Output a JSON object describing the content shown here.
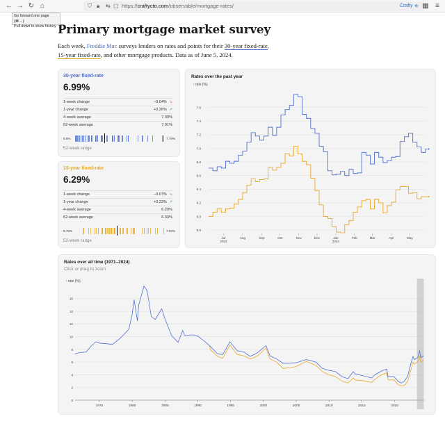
{
  "browser": {
    "url_prefix": "https://",
    "url_host": "craftycto.com",
    "url_path": "/observable/mortgage-rates/",
    "tooltip_line1": "Go forward one page (⌘→)",
    "tooltip_line2": "Pull down to show history",
    "extension_label": "Crafty",
    "icons": [
      "back-icon",
      "forward-icon",
      "reload-icon",
      "home-icon",
      "shield-icon",
      "lock-icon",
      "tracking-icon",
      "bookmark-icon",
      "extensions-icon",
      "menu-icon"
    ]
  },
  "page": {
    "title": "Primary mortgage market survey",
    "intro_1": "Each week, ",
    "intro_link": "Freddie Mac",
    "intro_2": " surveys lenders on rates and points for their ",
    "intro_30": "30-year fixed-rate",
    "intro_3": ", ",
    "intro_15": "15-year fixed-rate",
    "intro_4": ", and other mortgage products. Data as of June 5, 2024."
  },
  "colors": {
    "rate30": "#4f6fd0",
    "rate15": "#e9a829",
    "down": "#d9534f",
    "up": "#2e9b51"
  },
  "card30": {
    "title": "30-year fixed-rate",
    "rate": "6.99%",
    "rows": [
      {
        "label": "1-week change",
        "value": "−0.04%",
        "arrow": "↘",
        "dir": "down"
      },
      {
        "label": "1-year change",
        "value": "+0.26%",
        "arrow": "↗",
        "dir": "up"
      },
      {
        "label": "4-week average",
        "value": "7.00%",
        "arrow": "",
        "dir": ""
      },
      {
        "label": "52-week average",
        "value": "7.01%",
        "arrow": "",
        "dir": ""
      }
    ],
    "range_min": "6.6%",
    "range_max": "7.79%",
    "range_caption": "52-week range",
    "range": [
      6.6,
      7.79
    ],
    "current": 6.99
  },
  "card15": {
    "title": "15-year fixed-rate",
    "rate": "6.29%",
    "rows": [
      {
        "label": "1-week change",
        "value": "−0.07%",
        "arrow": "↘",
        "dir": "down"
      },
      {
        "label": "1-year change",
        "value": "+0.22%",
        "arrow": "↗",
        "dir": "up"
      },
      {
        "label": "4-week average",
        "value": "6.29%",
        "arrow": "",
        "dir": ""
      },
      {
        "label": "52-week average",
        "value": "6.33%",
        "arrow": "",
        "dir": ""
      }
    ],
    "range_min": "5.76%",
    "range_max": "7.03%",
    "range_caption": "52-week range",
    "range": [
      5.76,
      7.03
    ],
    "current": 6.29
  },
  "chart_data": [
    {
      "type": "line",
      "title": "Rates over the past year",
      "ylabel": "↑ rate (%)",
      "ylim": [
        5.75,
        7.75
      ],
      "yticks": [
        "5.8",
        "6.0",
        "6.2",
        "6.4",
        "6.6",
        "6.8",
        "7.0",
        "7.2",
        "7.4",
        "7.6"
      ],
      "xticks": [
        {
          "label": "Jul",
          "label2": "2023",
          "x": 3.5
        },
        {
          "label": "Aug",
          "label2": "",
          "x": 8
        },
        {
          "label": "Sep",
          "label2": "",
          "x": 12.5
        },
        {
          "label": "Oct",
          "label2": "",
          "x": 16.8
        },
        {
          "label": "Nov",
          "label2": "",
          "x": 21.2
        },
        {
          "label": "Dec",
          "label2": "",
          "x": 25.5
        },
        {
          "label": "Jan",
          "label2": "2024",
          "x": 29.9
        },
        {
          "label": "Feb",
          "label2": "",
          "x": 34.3
        },
        {
          "label": "Mar",
          "label2": "",
          "x": 38.5
        },
        {
          "label": "Apr",
          "label2": "",
          "x": 43
        },
        {
          "label": "May",
          "label2": "",
          "x": 47.3
        }
      ],
      "x_domain": [
        0,
        51
      ],
      "grid": true,
      "series": [
        {
          "name": "30-year fixed-rate",
          "color": "#4f6fd0",
          "values": [
            6.71,
            6.67,
            6.73,
            6.71,
            6.81,
            6.78,
            6.81,
            6.9,
            6.96,
            7.09,
            7.23,
            7.18,
            7.12,
            7.18,
            7.31,
            7.19,
            7.31,
            7.49,
            7.57,
            7.63,
            7.79,
            7.76,
            7.5,
            7.44,
            7.29,
            7.22,
            7.03,
            6.95,
            6.67,
            6.61,
            6.62,
            6.66,
            6.6,
            6.69,
            6.63,
            6.64,
            6.94,
            6.9,
            6.77,
            6.94,
            6.87,
            6.79,
            6.82,
            6.87,
            6.88,
            7.1,
            7.17,
            7.22,
            7.09,
            7.02,
            6.94,
            6.99
          ]
        },
        {
          "name": "15-year fixed-rate",
          "color": "#e9a829",
          "values": [
            6.0,
            6.06,
            6.11,
            6.06,
            6.11,
            6.12,
            6.18,
            6.25,
            6.35,
            6.46,
            6.55,
            6.51,
            6.54,
            6.55,
            6.72,
            6.68,
            6.72,
            6.78,
            6.92,
            6.89,
            7.03,
            6.92,
            6.81,
            6.76,
            6.56,
            6.38,
            6.17,
            6.0,
            5.97,
            5.85,
            5.77,
            5.76,
            5.88,
            5.94,
            6.06,
            6.14,
            6.23,
            6.25,
            6.11,
            6.25,
            6.2,
            6.05,
            6.16,
            6.21,
            6.39,
            6.44,
            6.44,
            6.34,
            6.35,
            6.26,
            6.29,
            6.29
          ]
        }
      ]
    },
    {
      "type": "line",
      "title": "Rates over all time (1971–2024)",
      "subtitle": "Click or drag to zoom",
      "ylabel": "↑ rate (%)",
      "ylim": [
        0,
        18.4
      ],
      "yticks": [
        "0",
        "2",
        "4",
        "6",
        "8",
        "10",
        "12",
        "14",
        "16"
      ],
      "xticks": [
        "1975",
        "1980",
        "1985",
        "1990",
        "1995",
        "2000",
        "2005",
        "2010",
        "2015",
        "2020"
      ],
      "x_domain": [
        1971.3,
        2024.5
      ],
      "highlight_range": [
        2023.4,
        2024.45
      ],
      "grid": true,
      "series": [
        {
          "name": "30-year fixed-rate",
          "color": "#4f6fd0",
          "x": [
            1971.3,
            1972,
            1973,
            1973.8,
            1974.5,
            1975,
            1976,
            1977,
            1978,
            1978.8,
            1979.5,
            1980,
            1980.3,
            1980.8,
            1981,
            1981.8,
            1982.3,
            1982.9,
            1983.5,
            1984.5,
            1985,
            1986,
            1987,
            1987.7,
            1988,
            1989.3,
            1990,
            1991,
            1992,
            1993,
            1993.8,
            1994.9,
            1996,
            1997,
            1998,
            1999,
            2000.4,
            2001,
            2002,
            2003,
            2004,
            2005,
            2006.5,
            2007,
            2008,
            2009,
            2010,
            2011,
            2012,
            2012.9,
            2013.7,
            2014,
            2015,
            2016.5,
            2017,
            2018,
            2018.8,
            2019,
            2019.9,
            2020.5,
            2021,
            2021.5,
            2022,
            2022.5,
            2022.8,
            2023,
            2023.5,
            2023.8,
            2024,
            2024.45
          ],
          "y": [
            7.3,
            7.5,
            7.6,
            8.6,
            9.2,
            9.0,
            8.9,
            8.8,
            9.6,
            10.4,
            11.2,
            13.5,
            15.8,
            12.5,
            15.0,
            18.0,
            17.2,
            13.2,
            12.7,
            14.4,
            12.8,
            10.2,
            9.1,
            11.0,
            10.2,
            10.3,
            10.1,
            9.3,
            8.4,
            7.3,
            7.2,
            9.2,
            7.8,
            7.6,
            6.9,
            7.4,
            8.6,
            7.0,
            6.5,
            5.8,
            5.8,
            5.9,
            6.4,
            6.3,
            6.0,
            5.0,
            4.7,
            4.5,
            3.7,
            3.4,
            4.5,
            4.1,
            3.9,
            3.5,
            4.0,
            4.6,
            4.9,
            3.7,
            3.7,
            3.0,
            2.7,
            3.0,
            3.8,
            5.8,
            6.9,
            6.4,
            6.7,
            7.8,
            6.7,
            7.0
          ]
        },
        {
          "name": "15-year fixed-rate",
          "color": "#e9a829",
          "x": [
            1991.7,
            1992,
            1993,
            1993.8,
            1994.9,
            1996,
            1997,
            1998,
            1999,
            2000.4,
            2001,
            2002,
            2003,
            2004,
            2005,
            2006.5,
            2007,
            2008,
            2009,
            2010,
            2011,
            2012,
            2012.9,
            2013.7,
            2014,
            2015,
            2016.5,
            2017,
            2018,
            2018.8,
            2019,
            2019.9,
            2020.5,
            2021,
            2021.5,
            2022,
            2022.5,
            2022.8,
            2023,
            2023.5,
            2023.8,
            2024,
            2024.45
          ],
          "y": [
            8.7,
            7.9,
            6.9,
            6.6,
            8.7,
            7.2,
            7.0,
            6.5,
            6.9,
            8.2,
            6.5,
            6.0,
            5.0,
            5.1,
            5.3,
            6.1,
            5.9,
            5.5,
            4.5,
            4.0,
            3.7,
            3.0,
            2.7,
            3.5,
            3.2,
            3.1,
            2.8,
            3.3,
            4.0,
            4.3,
            3.2,
            3.2,
            2.5,
            2.2,
            2.3,
            3.0,
            4.9,
            6.0,
            5.7,
            6.0,
            7.0,
            6.0,
            6.3
          ]
        }
      ]
    }
  ],
  "ui": {
    "zoom_hint": "Click or drag to zoom"
  }
}
